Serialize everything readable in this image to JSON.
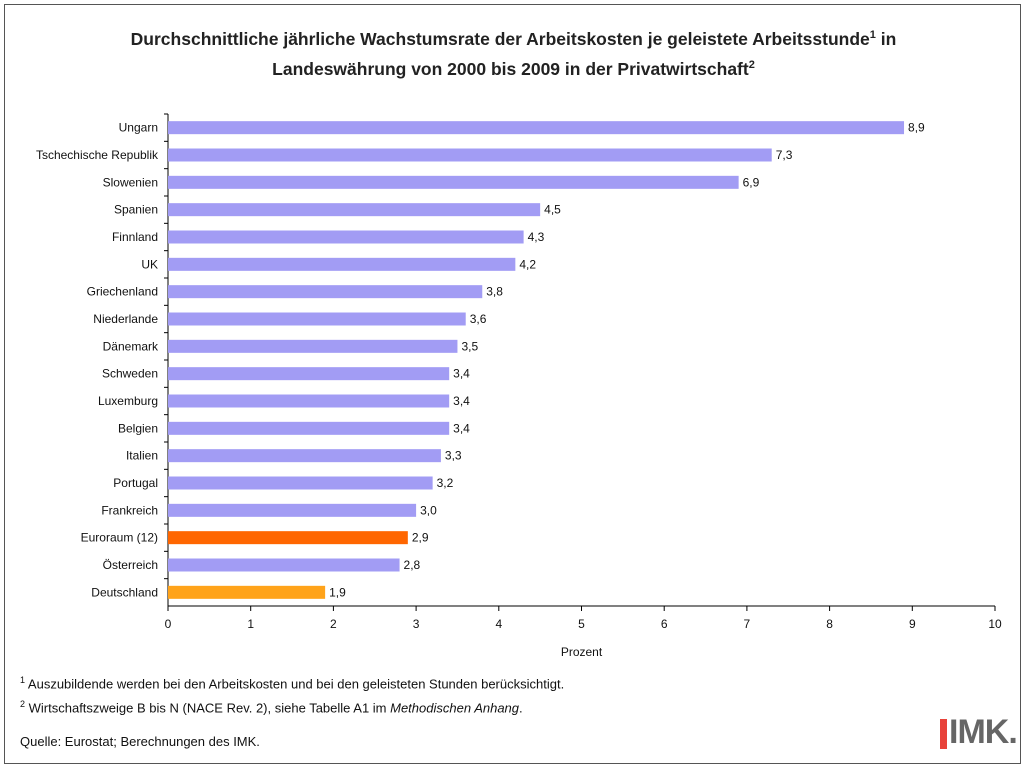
{
  "title": {
    "line1": "Durchschnittliche jährliche Wachstumsrate der Arbeitskosten je geleistete Arbeitsstunde",
    "line1_sup": "1",
    "line1_end": " in",
    "line2": "Landeswährung von 2000 bis 2009 in der Privatwirtschaft",
    "line2_sup": "2"
  },
  "chart_data": {
    "type": "bar",
    "orientation": "horizontal",
    "categories": [
      "Ungarn",
      "Tschechische Republik",
      "Slowenien",
      "Spanien",
      "Finnland",
      "UK",
      "Griechenland",
      "Niederlande",
      "Dänemark",
      "Schweden",
      "Luxemburg",
      "Belgien",
      "Italien",
      "Portugal",
      "Frankreich",
      "Euroraum (12)",
      "Österreich",
      "Deutschland"
    ],
    "values": [
      8.9,
      7.3,
      6.9,
      4.5,
      4.3,
      4.2,
      3.8,
      3.6,
      3.5,
      3.4,
      3.4,
      3.4,
      3.3,
      3.2,
      3.0,
      2.9,
      2.8,
      1.9
    ],
    "value_labels": [
      "8,9",
      "7,3",
      "6,9",
      "4,5",
      "4,3",
      "4,2",
      "3,8",
      "3,6",
      "3,5",
      "3,4",
      "3,4",
      "3,4",
      "3,3",
      "3,2",
      "3,0",
      "2,9",
      "2,8",
      "1,9"
    ],
    "xlabel": "Prozent",
    "xlim": [
      0,
      10
    ],
    "xticks": [
      "0",
      "1",
      "2",
      "3",
      "4",
      "5",
      "6",
      "7",
      "8",
      "9",
      "10"
    ],
    "grid": false,
    "colors": {
      "default": "#a29cf4",
      "highlight": {
        "Euroraum (12)": "#ff6600",
        "Deutschland": "#ffa31a"
      }
    }
  },
  "footnotes": [
    {
      "mark": "1",
      "text": "Auszubildende werden bei den Arbeitskosten und bei den geleisteten Stunden berücksichtigt."
    },
    {
      "mark": "2",
      "text_before": "Wirtschaftszweige B bis N (NACE Rev. 2), siehe Tabelle A1 im ",
      "text_italic": "Methodischen Anhang",
      "text_after": "."
    }
  ],
  "source": "Quelle: Eurostat; Berechnungen des IMK.",
  "logo": {
    "text": "IMK.",
    "accent": "#e8423a"
  }
}
